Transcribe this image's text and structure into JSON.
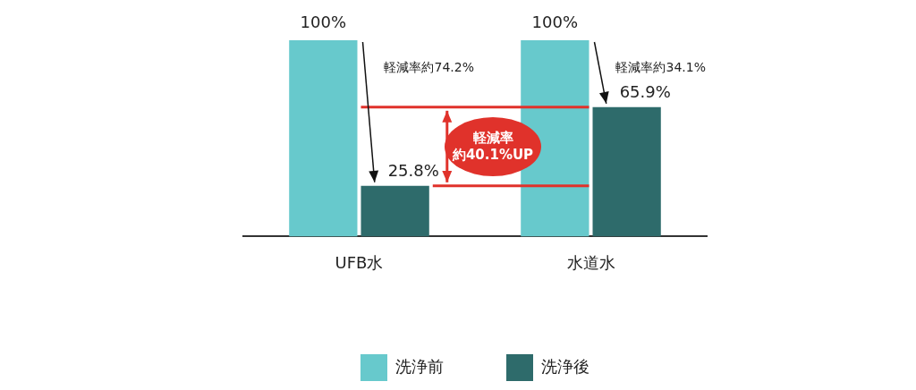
{
  "chart_data": {
    "type": "bar",
    "categories": [
      "UFB水",
      "水道水"
    ],
    "series": [
      {
        "name": "洗浄前",
        "color": "#67c9cc",
        "values": [
          100,
          100
        ],
        "value_labels": [
          "100%",
          "100%"
        ]
      },
      {
        "name": "洗浄後",
        "color": "#2e6b6b",
        "values": [
          25.8,
          65.9
        ],
        "value_labels": [
          "25.8%",
          "65.9%"
        ]
      }
    ],
    "ylim": [
      0,
      100
    ],
    "tick_labels": "x",
    "grid": false,
    "legend": "bottom",
    "ref_lines": [
      {
        "axis": "y",
        "value": 65.9,
        "color": "#e0322b"
      },
      {
        "axis": "y",
        "value": 25.8,
        "color": "#e0322b"
      }
    ],
    "annotations": [
      "軽減率約74.2%",
      "軽減率約34.1%",
      "軽減率",
      "約40.1%UP"
    ]
  }
}
